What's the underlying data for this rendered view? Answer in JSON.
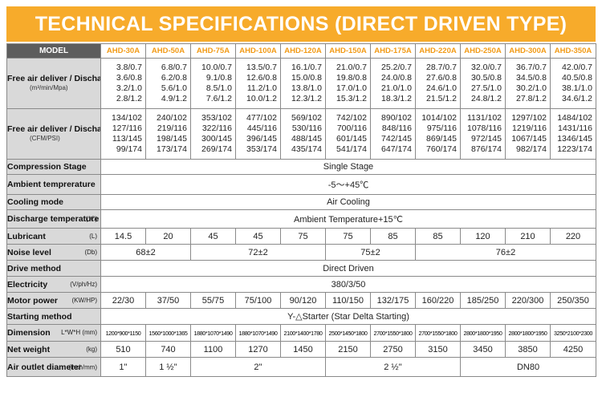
{
  "title": "TECHNICAL SPECIFICATIONS (DIRECT DRIVEN TYPE)",
  "table": {
    "model_label": "MODEL",
    "models": [
      "AHD-30A",
      "AHD-50A",
      "AHD-75A",
      "AHD-100A",
      "AHD-120A",
      "AHD-150A",
      "AHD-175A",
      "AHD-220A",
      "AHD-250A",
      "AHD-300A",
      "AHD-350A"
    ],
    "fad_mpa": {
      "label": "Free air deliver / Discharge pressure",
      "unit": "(m³/min/Mpa)",
      "values": [
        [
          "3.8/0.7",
          "3.6/0.8",
          "3.2/1.0",
          "2.8/1.2"
        ],
        [
          "6.8/0.7",
          "6.2/0.8",
          "5.6/1.0",
          "4.9/1.2"
        ],
        [
          "10.0/0.7",
          "9.1/0.8",
          "8.5/1.0",
          "7.6/1.2"
        ],
        [
          "13.5/0.7",
          "12.6/0.8",
          "11.2/1.0",
          "10.0/1.2"
        ],
        [
          "16.1/0.7",
          "15.0/0.8",
          "13.8/1.0",
          "12.3/1.2"
        ],
        [
          "21.0/0.7",
          "19.8/0.8",
          "17.0/1.0",
          "15.3/1.2"
        ],
        [
          "25.2/0.7",
          "24.0/0.8",
          "21.0/1.0",
          "18.3/1.2"
        ],
        [
          "28.7/0.7",
          "27.6/0.8",
          "24.6/1.0",
          "21.5/1.2"
        ],
        [
          "32.0/0.7",
          "30.5/0.8",
          "27.5/1.0",
          "24.8/1.2"
        ],
        [
          "36.7/0.7",
          "34.5/0.8",
          "30.2/1.0",
          "27.8/1.2"
        ],
        [
          "42.0/0.7",
          "40.5/0.8",
          "38.1/1.0",
          "34.6/1.2"
        ]
      ]
    },
    "fad_cfm": {
      "label": "Free air deliver / Discharge pressure",
      "unit": "(CFM/PSI)",
      "values": [
        [
          "134/102",
          "127/116",
          "113/145",
          "99/174"
        ],
        [
          "240/102",
          "219/116",
          "198/145",
          "173/174"
        ],
        [
          "353/102",
          "322/116",
          "300/145",
          "269/174"
        ],
        [
          "477/102",
          "445/116",
          "396/145",
          "353/174"
        ],
        [
          "569/102",
          "530/116",
          "488/145",
          "435/174"
        ],
        [
          "742/102",
          "700/116",
          "601/145",
          "541/174"
        ],
        [
          "890/102",
          "848/116",
          "742/145",
          "647/174"
        ],
        [
          "1014/102",
          "975/116",
          "869/145",
          "760/174"
        ],
        [
          "1131/102",
          "1078/116",
          "972/145",
          "876/174"
        ],
        [
          "1297/102",
          "1219/116",
          "1067/145",
          "982/174"
        ],
        [
          "1484/102",
          "1431/116",
          "1346/145",
          "1223/174"
        ]
      ]
    },
    "compression": {
      "label": "Compression Stage",
      "value": "Single Stage"
    },
    "ambient": {
      "label": "Ambient temprerature",
      "value": "-5～+45℃"
    },
    "cooling": {
      "label": "Cooling mode",
      "value": "Air Cooling"
    },
    "discharge": {
      "label": "Discharge temperature",
      "unit": "(℃)",
      "value": "Ambient Temperature+15℃"
    },
    "lubricant": {
      "label": "Lubricant",
      "unit": "(L)",
      "values": [
        "14.5",
        "20",
        "45",
        "45",
        "75",
        "75",
        "85",
        "85",
        "120",
        "210",
        "220"
      ]
    },
    "noise": {
      "label": "Noise level",
      "unit": "(Db)",
      "values": [
        "68±2",
        "72±2",
        "75±2",
        "76±2"
      ]
    },
    "drive": {
      "label": "Drive method",
      "value": "Direct Driven"
    },
    "electricity": {
      "label": "Electricity",
      "unit": "(V/ph/Hz)",
      "value": "380/3/50"
    },
    "motor": {
      "label": "Motor power",
      "unit": "(KW/HP)",
      "values": [
        "22/30",
        "37/50",
        "55/75",
        "75/100",
        "90/120",
        "110/150",
        "132/175",
        "160/220",
        "185/250",
        "220/300",
        "250/350"
      ]
    },
    "starting": {
      "label": "Starting method",
      "value": "Y-△Starter (Star Delta Starting)"
    },
    "dimension": {
      "label": "Dimension",
      "unit": "L*W*H (mm)",
      "values": [
        "1200*900*1150",
        "1560*1000*1365",
        "1880*1070*1490",
        "1880*1070*1490",
        "2100*1400*1780",
        "2500*1450*1800",
        "2700*1550*1800",
        "2700*1550*1800",
        "2800*1800*1950",
        "2800*1800*1950",
        "3250*2100*2300"
      ]
    },
    "weight": {
      "label": "Net weight",
      "unit": "(kg)",
      "values": [
        "510",
        "740",
        "1100",
        "1270",
        "1450",
        "2150",
        "2750",
        "3150",
        "3450",
        "3850",
        "4250"
      ]
    },
    "outlet": {
      "label": "Air outlet diameter",
      "unit": "(inch/mm)",
      "values": [
        "1''",
        "1 ½''",
        "2''",
        "2 ½''",
        "DN80"
      ]
    }
  }
}
